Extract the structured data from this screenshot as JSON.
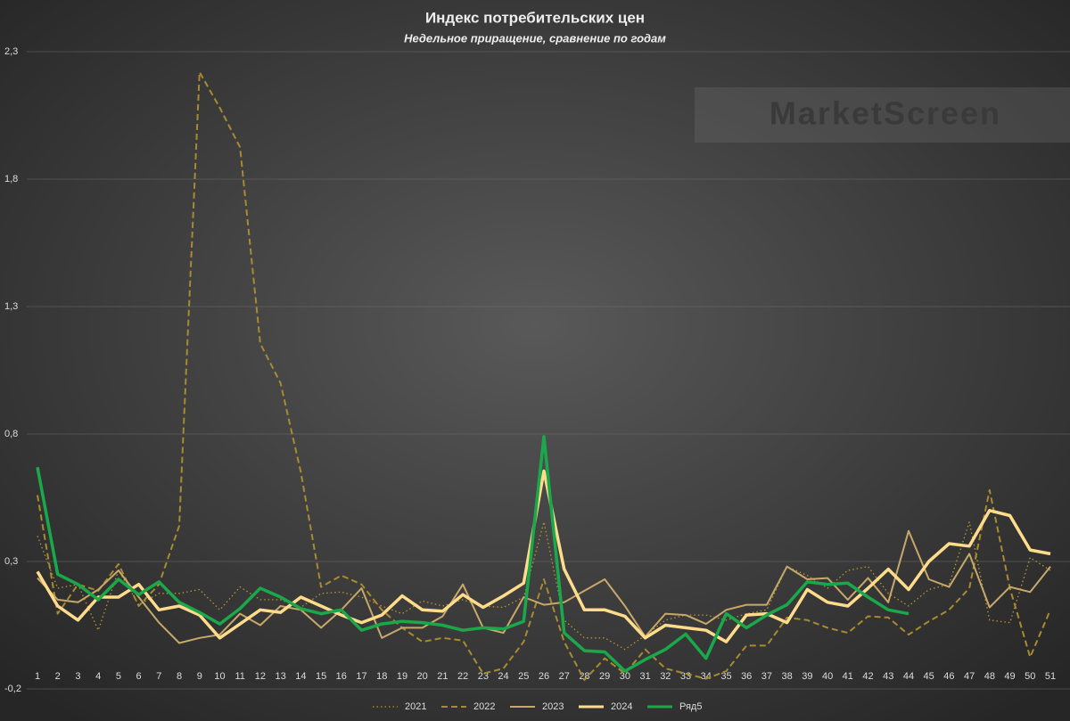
{
  "chart_data": {
    "type": "line",
    "title": "Индекс потребительских цен",
    "subtitle": "Недельное приращение, сравнение по годам",
    "watermark": "MarketScreen",
    "categories": [
      "1",
      "2",
      "3",
      "4",
      "5",
      "6",
      "7",
      "8",
      "9",
      "10",
      "11",
      "12",
      "13",
      "14",
      "15",
      "16",
      "17",
      "18",
      "19",
      "20",
      "21",
      "22",
      "23",
      "24",
      "25",
      "26",
      "27",
      "28",
      "29",
      "30",
      "31",
      "32",
      "33",
      "34",
      "35",
      "36",
      "37",
      "38",
      "39",
      "40",
      "41",
      "42",
      "43",
      "44",
      "45",
      "46",
      "47",
      "48",
      "49",
      "50",
      "51"
    ],
    "ylim": [
      -0.2,
      2.3
    ],
    "yticks": [
      {
        "value": -0.2,
        "label": "-0,2"
      },
      {
        "value": 0.3,
        "label": "0,3"
      },
      {
        "value": 0.8,
        "label": "0,8"
      },
      {
        "value": 1.3,
        "label": "1,3"
      },
      {
        "value": 1.8,
        "label": "1,8"
      },
      {
        "value": 2.3,
        "label": "2,3"
      }
    ],
    "grid": true,
    "legend": "bottom",
    "series": [
      {
        "name": "2021",
        "color": "#b8962e",
        "dash": "dotted",
        "width": 1.3,
        "values": [
          0.4,
          0.195,
          0.21,
          0.03,
          0.265,
          0.13,
          0.175,
          0.175,
          0.19,
          0.11,
          0.2,
          0.15,
          0.15,
          0.12,
          0.175,
          0.18,
          0.16,
          0.125,
          0.095,
          0.145,
          0.125,
          0.15,
          0.125,
          0.12,
          0.16,
          0.455,
          0.07,
          0.0,
          0.0,
          -0.045,
          0.01,
          0.07,
          0.09,
          0.09,
          0.07,
          0.095,
          0.11,
          0.28,
          0.245,
          0.195,
          0.265,
          0.28,
          0.175,
          0.125,
          0.19,
          0.21,
          0.455,
          0.07,
          0.06,
          0.315,
          0.265
        ]
      },
      {
        "name": "2022",
        "color": "#a88a30",
        "dash": "dashed",
        "width": 2,
        "values": [
          0.56,
          0.095,
          0.21,
          0.185,
          0.29,
          0.125,
          0.21,
          0.44,
          2.22,
          2.08,
          1.925,
          1.155,
          1.0,
          0.65,
          0.2,
          0.245,
          0.21,
          0.11,
          0.04,
          -0.015,
          0.0,
          -0.01,
          -0.14,
          -0.12,
          -0.015,
          0.23,
          -0.015,
          -0.165,
          -0.08,
          -0.14,
          -0.045,
          -0.12,
          -0.14,
          -0.16,
          -0.13,
          -0.03,
          -0.03,
          0.08,
          0.07,
          0.04,
          0.02,
          0.085,
          0.08,
          0.013,
          0.065,
          0.11,
          0.195,
          0.58,
          0.195,
          -0.075,
          0.11
        ]
      },
      {
        "name": "2023",
        "color": "#c8a86a",
        "dash": "solid",
        "width": 2,
        "values": [
          0.235,
          0.15,
          0.14,
          0.19,
          0.265,
          0.16,
          0.06,
          -0.02,
          0.0,
          0.013,
          0.095,
          0.05,
          0.125,
          0.11,
          0.04,
          0.11,
          0.195,
          0.0,
          0.04,
          0.04,
          0.085,
          0.21,
          0.04,
          0.02,
          0.16,
          0.13,
          0.14,
          0.185,
          0.23,
          0.125,
          0.005,
          0.095,
          0.09,
          0.055,
          0.11,
          0.13,
          0.13,
          0.28,
          0.23,
          0.235,
          0.15,
          0.235,
          0.14,
          0.42,
          0.23,
          0.2,
          0.33,
          0.12,
          0.2,
          0.18,
          0.28
        ]
      },
      {
        "name": "2024",
        "color": "#ffdc8c",
        "dash": "solid",
        "width": 3.5,
        "values": [
          0.26,
          0.125,
          0.07,
          0.16,
          0.16,
          0.21,
          0.11,
          0.125,
          0.09,
          0.0,
          0.055,
          0.11,
          0.1,
          0.16,
          0.125,
          0.09,
          0.06,
          0.09,
          0.165,
          0.11,
          0.105,
          0.17,
          0.12,
          0.165,
          0.215,
          0.655,
          0.27,
          0.11,
          0.11,
          0.085,
          0.0,
          0.05,
          0.04,
          0.03,
          -0.015,
          0.09,
          0.095,
          0.06,
          0.19,
          0.14,
          0.125,
          0.195,
          0.27,
          0.19,
          0.3,
          0.37,
          0.36,
          0.5,
          0.48,
          0.345,
          0.33
        ]
      },
      {
        "name": "Ряд5",
        "color": "#1aa84a",
        "dash": "solid",
        "width": 3.5,
        "values": [
          0.67,
          0.25,
          0.21,
          0.15,
          0.23,
          0.17,
          0.22,
          0.14,
          0.1,
          0.055,
          0.115,
          0.195,
          0.16,
          0.115,
          0.095,
          0.11,
          0.03,
          0.055,
          0.065,
          0.06,
          0.05,
          0.03,
          0.04,
          0.035,
          0.065,
          0.79,
          0.02,
          -0.05,
          -0.055,
          -0.13,
          -0.085,
          -0.045,
          0.015,
          -0.08,
          0.095,
          0.04,
          0.09,
          0.13,
          0.22,
          0.21,
          0.215,
          0.16,
          0.11,
          0.095,
          null,
          null,
          null,
          null,
          null,
          null,
          null
        ]
      }
    ]
  }
}
